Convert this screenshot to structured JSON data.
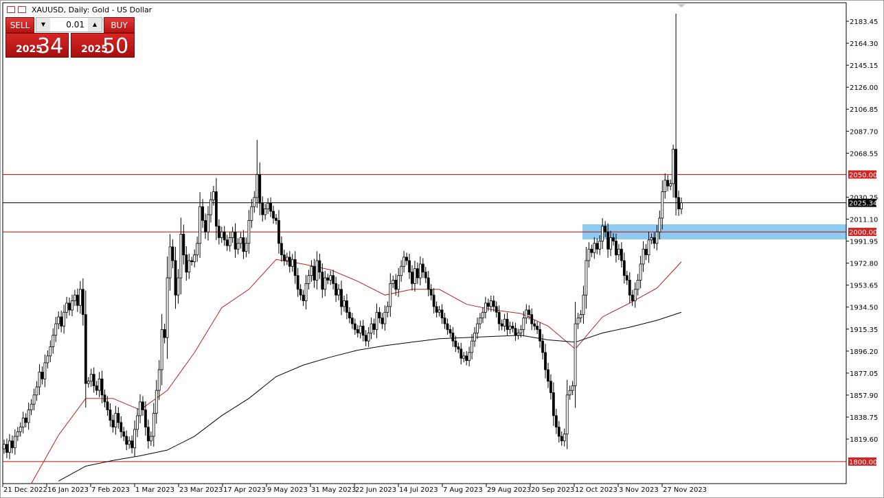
{
  "window": {
    "title": "XAUUSD, Daily:  Gold - US Dollar"
  },
  "trade_panel": {
    "sell_label": "SELL",
    "buy_label": "BUY",
    "volume": "0.01",
    "bid_big": "2025",
    "bid_small": "34",
    "ask_big": "2025",
    "ask_small": "50"
  },
  "colors": {
    "level_line": "#c00000",
    "zone": "#8ecbf2",
    "bid_line": "#000000",
    "ma_fast": "#b22222",
    "ma_slow": "#000000",
    "bull": "#ffffff",
    "bear": "#000000"
  },
  "chart_data": {
    "type": "candlestick",
    "symbol": "XAUUSD",
    "timeframe": "Daily",
    "x_tick_labels": [
      "21 Dec 2022",
      "16 Jan 2023",
      "7 Feb 2023",
      "1 Mar 2023",
      "23 Mar 2023",
      "17 Apr 2023",
      "9 May 2023",
      "31 May 2023",
      "22 Jun 2023",
      "14 Jul 2023",
      "7 Aug 2023",
      "29 Aug 2023",
      "20 Sep 2023",
      "12 Oct 2023",
      "3 Nov 2023",
      "27 Nov 2023"
    ],
    "y_tick_labels": [
      "2183.45",
      "2164.30",
      "2145.15",
      "2126.00",
      "2106.85",
      "2087.70",
      "2068.55",
      "2030.25",
      "2011.10",
      "1991.95",
      "1972.80",
      "1953.65",
      "1934.50",
      "1915.35",
      "1896.20",
      "1877.05",
      "1857.90",
      "1838.75",
      "1819.60"
    ],
    "ylim": [
      1780.8,
      2199.5
    ],
    "closes": [
      1815,
      1808,
      1818,
      1812,
      1822,
      1826,
      1830,
      1838,
      1834,
      1845,
      1850,
      1858,
      1865,
      1878,
      1872,
      1886,
      1892,
      1900,
      1910,
      1920,
      1926,
      1918,
      1930,
      1938,
      1932,
      1940,
      1945,
      1936,
      1950,
      1928,
      1868,
      1870,
      1876,
      1866,
      1862,
      1872,
      1858,
      1852,
      1845,
      1836,
      1830,
      1842,
      1834,
      1826,
      1822,
      1815,
      1818,
      1812,
      1828,
      1840,
      1852,
      1845,
      1830,
      1818,
      1822,
      1842,
      1862,
      1880,
      1915,
      1908,
      1960,
      1987,
      1975,
      1945,
      1960,
      1998,
      1980,
      1965,
      1975,
      1974,
      1980,
      1990,
      2022,
      2010,
      2000,
      2015,
      2028,
      2035,
      2005,
      1995,
      2000,
      1993,
      1988,
      1995,
      2000,
      1985,
      1990,
      1995,
      1983,
      1990,
      2010,
      2022,
      2030,
      2050,
      2025,
      2015,
      2020,
      2025,
      2018,
      2012,
      2010,
      1990,
      1980,
      1975,
      1978,
      1970,
      1976,
      1962,
      1950,
      1945,
      1940,
      1955,
      1962,
      1970,
      1958,
      1975,
      1965,
      1950,
      1960,
      1958,
      1962,
      1955,
      1945,
      1950,
      1935,
      1940,
      1930,
      1925,
      1920,
      1915,
      1912,
      1918,
      1910,
      1905,
      1912,
      1920,
      1915,
      1930,
      1925,
      1920,
      1930,
      1935,
      1955,
      1958,
      1950,
      1962,
      1970,
      1978,
      1975,
      1965,
      1955,
      1968,
      1960,
      1972,
      1965,
      1960,
      1950,
      1945,
      1935,
      1930,
      1932,
      1925,
      1920,
      1915,
      1912,
      1905,
      1900,
      1898,
      1890,
      1892,
      1888,
      1895,
      1905,
      1912,
      1920,
      1925,
      1930,
      1938,
      1935,
      1940,
      1935,
      1930,
      1920,
      1918,
      1924,
      1915,
      1918,
      1916,
      1910,
      1912,
      1915,
      1925,
      1932,
      1928,
      1920,
      1918,
      1915,
      1905,
      1895,
      1880,
      1870,
      1860,
      1840,
      1830,
      1822,
      1818,
      1824,
      1858,
      1862,
      1866,
      1920,
      1925,
      1928,
      1945,
      1975,
      1985,
      1982,
      1990,
      1985,
      1992,
      2005,
      2000,
      1985,
      1995,
      1992,
      1980,
      1985,
      1975,
      1962,
      1958,
      1945,
      1940,
      1950,
      1958,
      1972,
      1985,
      1980,
      1993,
      1995,
      1990,
      2000,
      2012,
      2035,
      2045,
      2040,
      2042,
      2072,
      2030,
      2020,
      2025.34
    ],
    "extreme_highs": [
      {
        "bar": 93,
        "high": 2080
      },
      {
        "bar": 247,
        "high": 2190
      },
      {
        "bar": 246,
        "high": 2076
      }
    ],
    "ma_fast": [
      null,
      1780,
      1823,
      1855,
      1855,
      1845,
      1862,
      1895,
      1934,
      1950,
      1976,
      1972,
      1967,
      1957,
      1945,
      1950,
      1950,
      1937,
      1932,
      1929,
      1918,
      1898,
      1926,
      1938,
      1951,
      1974
    ],
    "ma_slow": [
      null,
      null,
      1783,
      1796,
      1801,
      1805,
      1810,
      1822,
      1840,
      1855,
      1874,
      1884,
      1891,
      1897,
      1901,
      1904,
      1907,
      1908,
      1909,
      1910,
      1906,
      1904,
      1912,
      1917,
      1923,
      1930
    ],
    "ma_sample_every_bars": 10,
    "levels": [
      {
        "price": 2050.0,
        "label": "2050.00"
      },
      {
        "price": 2000.0,
        "label": "2000.00"
      },
      {
        "price": 1800.0,
        "label": "1800.00"
      }
    ],
    "bid": {
      "price": 2025.34,
      "label": "2025.34"
    },
    "zone": {
      "from": 1993.5,
      "to": 2006.6
    }
  }
}
